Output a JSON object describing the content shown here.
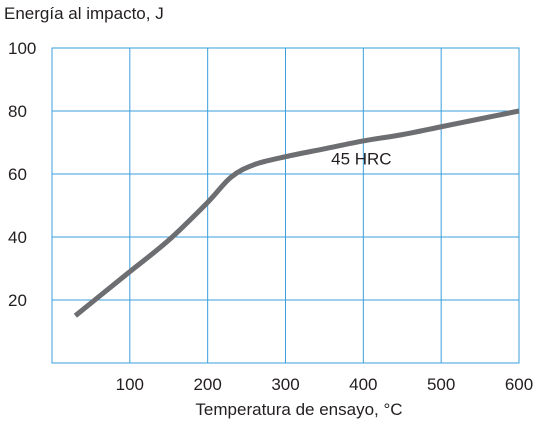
{
  "chart_data": {
    "type": "line",
    "title": "",
    "ylabel": "Energía al impacto, J",
    "xlabel": "Temperatura de ensayo, °C",
    "xlim": [
      0,
      600
    ],
    "ylim": [
      0,
      100
    ],
    "x_ticks": [
      100,
      200,
      300,
      400,
      500,
      600
    ],
    "y_ticks": [
      20,
      40,
      60,
      80,
      100
    ],
    "grid": true,
    "series": [
      {
        "name": "45 HRC",
        "color": "#6d6e71",
        "x": [
          30,
          60,
          100,
          150,
          200,
          230,
          260,
          300,
          350,
          400,
          450,
          500,
          550,
          600
        ],
        "y": [
          15,
          21,
          29,
          39,
          51,
          59,
          63,
          65.5,
          68,
          70.5,
          72.5,
          75,
          77.5,
          80
        ]
      }
    ],
    "annotations": [
      {
        "text": "45 HRC",
        "x": 410,
        "y": 65
      }
    ],
    "colors": {
      "grid": "#3a9fdc",
      "line": "#6d6e71",
      "text": "#231f20"
    }
  }
}
